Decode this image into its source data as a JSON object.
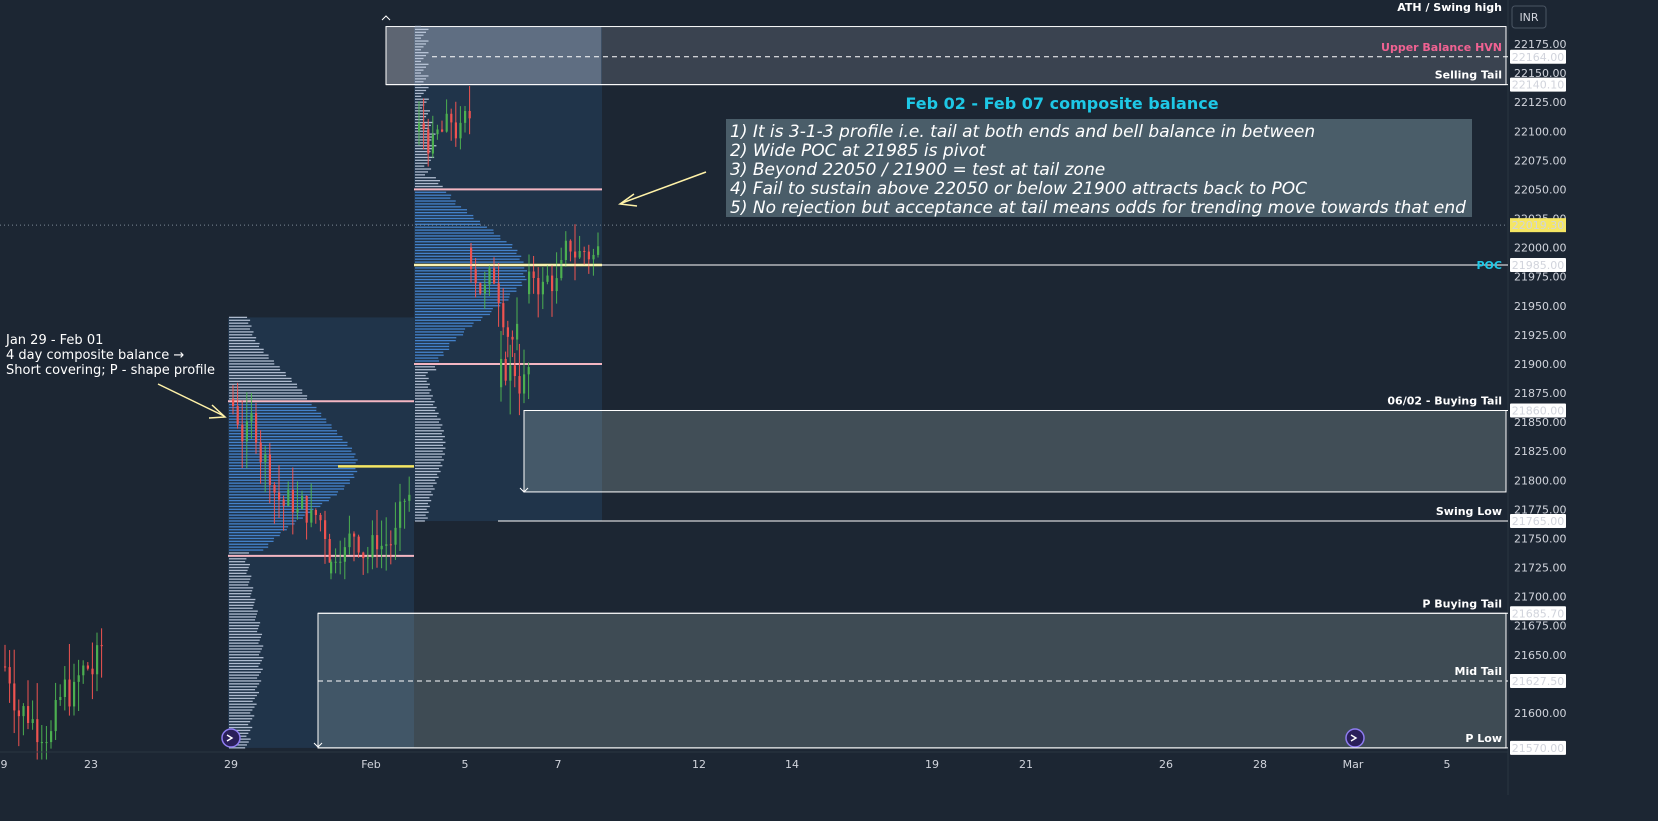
{
  "currency": "INR",
  "colors": {
    "background": "#1c2633",
    "up": "#4caf50",
    "down": "#ef5350",
    "profile_old": "#4a8fe0",
    "profile_new": "#4a8fe0",
    "profile_tail": "#c8d4e6",
    "poc": "#f5e663",
    "value_area": "#f4b6c2",
    "title_cyan": "#1ec8e6",
    "pink_label": "#f06292"
  },
  "x_axis": {
    "ticks": [
      "9",
      "23",
      "29",
      "Feb",
      "5",
      "7",
      "12",
      "14",
      "19",
      "21",
      "26",
      "28",
      "Mar",
      "5"
    ]
  },
  "y_axis": {
    "ticks": [
      "22175.00",
      "22150.00",
      "22125.00",
      "22100.00",
      "22075.00",
      "22050.00",
      "22025.00",
      "22000.00",
      "21975.00",
      "21950.00",
      "21925.00",
      "21900.00",
      "21875.00",
      "21850.00",
      "21825.00",
      "21800.00",
      "21775.00",
      "21750.00",
      "21725.00",
      "21700.00",
      "21675.00",
      "21650.00",
      "21625.00",
      "21600.00"
    ],
    "last_price": "22019.30"
  },
  "price_levels": [
    {
      "price": 22164.0,
      "label": "22164.00",
      "name": "Upper Balance HVN",
      "style": "dashed",
      "text_color": "#f06292"
    },
    {
      "price": 22140.1,
      "label": "22140.10",
      "name": "Selling Tail",
      "style": "solid",
      "text_color": "#ffffff"
    },
    {
      "price": 21985.0,
      "label": "21985.00",
      "name": "POC",
      "style": "solid",
      "text_color": "#1ec8e6"
    },
    {
      "price": 21860.0,
      "label": "21860.00",
      "name": "06/02 - Buying Tail",
      "style": "solid",
      "text_color": "#ffffff"
    },
    {
      "price": 21765.0,
      "label": "21765.00",
      "name": "Swing Low",
      "style": "solid",
      "text_color": "#ffffff"
    },
    {
      "price": 21685.7,
      "label": "21685.70",
      "name": "P Buying Tail",
      "style": "solid",
      "text_color": "#ffffff"
    },
    {
      "price": 21627.5,
      "label": "21627.50",
      "name": "Mid Tail",
      "style": "dashed",
      "text_color": "#ffffff"
    },
    {
      "price": 21570.0,
      "label": "21570.00",
      "name": "P Low",
      "style": "solid",
      "text_color": "#ffffff"
    }
  ],
  "top_label": "ATH / Swing high",
  "annotation_main": {
    "title": "Feb 02 - Feb 07 composite balance",
    "lines": [
      "1) It is 3-1-3 profile i.e. tail at both ends and bell balance in between",
      "2) Wide POC at 21985 is pivot",
      "3) Beyond 22050 / 21900 = test at tail zone",
      "4) Fail to sustain above 22050 or below 21900 attracts back to POC",
      "5) No rejection but acceptance at tail means odds for trending move towards that end"
    ]
  },
  "annotation_left": {
    "lines": [
      "Jan 29 - Feb 01",
      "4 day composite balance →",
      "Short covering; P - shape profile"
    ]
  },
  "chart_data": {
    "type": "candlestick",
    "title": "",
    "y_range": [
      21565,
      22190
    ],
    "composite_profiles": [
      {
        "name": "Jan 29 - Feb 01",
        "poc": 21812,
        "vah": 21868,
        "val": 21735,
        "high": 21940,
        "low": 21570
      },
      {
        "name": "Feb 02 - Feb 07",
        "poc": 21985,
        "vah": 22050,
        "val": 21900,
        "high": 22190,
        "low": 21765
      }
    ],
    "zones": [
      {
        "name": "Selling Tail",
        "top": 22190,
        "bottom": 22140.1
      },
      {
        "name": "06/02 - Buying Tail",
        "top": 21860,
        "bottom": 21790
      },
      {
        "name": "P Buying Tail",
        "top": 21685.7,
        "bottom": 21570
      }
    ]
  }
}
